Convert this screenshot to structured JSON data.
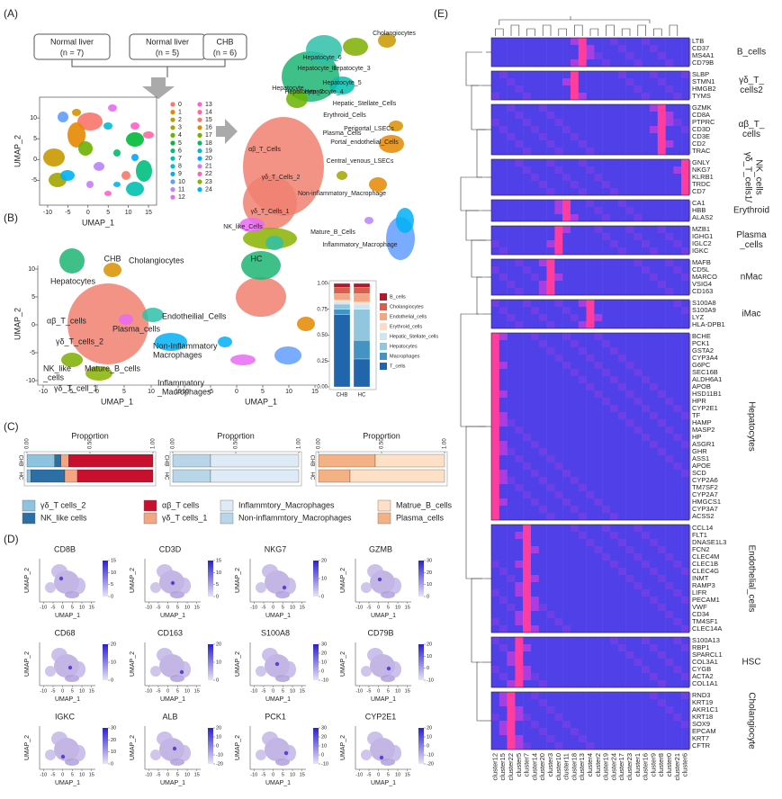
{
  "panel_labels": [
    "(A)",
    "(B)",
    "(C)",
    "(D)",
    "(E)"
  ],
  "panel_a": {
    "boxes": [
      {
        "title": "Normal liver",
        "n": "(n = 7)"
      },
      {
        "title": "Normal liver",
        "n": "(n = 5)"
      },
      {
        "title": "CHB",
        "n": "(n = 6)"
      }
    ],
    "xlabel": "UMAP_1",
    "ylabel": "UMAP_2",
    "xticks": [
      -10,
      -5,
      0,
      5,
      10,
      15
    ],
    "yticks": [
      10,
      5,
      0,
      -5
    ],
    "clusters": [
      "0",
      "1",
      "2",
      "3",
      "4",
      "5",
      "6",
      "7",
      "8",
      "9",
      "10",
      "11",
      "12",
      "13",
      "14",
      "15",
      "16",
      "17",
      "18",
      "19",
      "20",
      "21",
      "22",
      "23",
      "24"
    ],
    "cell_labels": [
      "Cholangiocytes",
      "Hepatocyte_6",
      "Hepatocyte_1",
      "Hepatocyte_3",
      "Hepatocyte",
      "Hepatocyte_5",
      "Hepatocyte_4",
      "Hepatocyte_2",
      "Hepatic_Stellate_Cells",
      "Erythroid_Cells",
      "Periportal_LSECs",
      "Plasma_Cells",
      "Portal_endothelial_Cells",
      "αβ_T_Cells",
      "Central_venous_LSECs",
      "γδ_T_Cells_2",
      "γδ_T_Cells_1",
      "NK_like_Cells",
      "Non-inflammatory_Macrophage",
      "Mature_B_Cells",
      "Inflammatory_Macrophage"
    ]
  },
  "panel_b": {
    "groups": [
      "CHB",
      "HC"
    ],
    "xlabel": "UMAP_1",
    "ylabel": "UMAP_2",
    "xticks_left": [
      -10,
      -5,
      0,
      5,
      10,
      15
    ],
    "xticks_right": [
      -10,
      -5,
      0,
      5,
      10,
      15
    ],
    "yticks": [
      10,
      5,
      0,
      -5,
      -10
    ],
    "cell_labels": [
      [
        "Cholangiocytes"
      ],
      [
        "Hepatocytes"
      ],
      [
        "αβ_T_cells"
      ],
      [
        "γδ_T_cells_2"
      ],
      [
        "Plasma_cells"
      ],
      [
        "Endotheilial_Cells"
      ],
      [
        "Non-Inflammatory",
        "Macrophages"
      ],
      [
        "NK_like",
        "_cells"
      ],
      [
        "Mature_B_cells"
      ],
      [
        "γδ_T_cell_1"
      ],
      [
        "Inflammatory",
        "_Macrophages"
      ]
    ],
    "bar": {
      "type": "bar",
      "categories": [
        "CHB",
        "HC"
      ],
      "ylim": [
        0,
        1
      ],
      "yticks": [
        {
          "value": 0,
          "label": "0.00"
        },
        {
          "value": 0.25,
          "label": "0.25"
        },
        {
          "value": 0.5,
          "label": "0.50"
        },
        {
          "value": 0.75,
          "label": "0.75"
        },
        {
          "value": 1,
          "label": "1.00"
        }
      ],
      "series": [
        {
          "name": "T_cells",
          "color": "#2166ac",
          "values": [
            0.7,
            0.27
          ]
        },
        {
          "name": "Macrophages",
          "color": "#4393c3",
          "values": [
            0.05,
            0.18
          ]
        },
        {
          "name": "Hepatocytes",
          "color": "#92c5de",
          "values": [
            0.05,
            0.3
          ]
        },
        {
          "name": "Hepatic_Stellate_cells",
          "color": "#d1e5f0",
          "values": [
            0.02,
            0.05
          ]
        },
        {
          "name": "Erythroid_cells",
          "color": "#fddbc7",
          "values": [
            0.02,
            0.02
          ]
        },
        {
          "name": "Endothelial_cells",
          "color": "#f4a582",
          "values": [
            0.06,
            0.08
          ]
        },
        {
          "name": "Cholangiocytes",
          "color": "#d6604d",
          "values": [
            0.06,
            0.06
          ]
        },
        {
          "name": "B_cells",
          "color": "#b2182b",
          "values": [
            0.04,
            0.04
          ]
        }
      ]
    }
  },
  "panel_c": {
    "charts": [
      {
        "type": "bar",
        "title": "Proportion",
        "categories": [
          "CHB",
          "HC"
        ],
        "xlim": [
          0,
          1
        ],
        "xticks": [
          {
            "value": 0,
            "label": "0.00"
          },
          {
            "value": 0.5,
            "label": "0.50"
          },
          {
            "value": 1,
            "label": "1.00"
          }
        ],
        "series": [
          {
            "name": "γδ_T cells_2",
            "color": "#8ec3e0",
            "values": [
              0.22,
              0.03
            ]
          },
          {
            "name": "NK_like cells",
            "color": "#2b6fa6",
            "values": [
              0.05,
              0.27
            ]
          },
          {
            "name": "γδ_T cells_1",
            "color": "#f4a582",
            "values": [
              0.06,
              0.1
            ]
          },
          {
            "name": "αβ_T cells",
            "color": "#c8102e",
            "values": [
              0.67,
              0.6
            ]
          }
        ]
      },
      {
        "type": "bar",
        "title": "Proportion",
        "categories": [
          "CHB",
          "HC"
        ],
        "xlim": [
          0,
          1
        ],
        "xticks": [
          {
            "value": 0,
            "label": "0.00"
          },
          {
            "value": 0.5,
            "label": "0.50"
          },
          {
            "value": 1,
            "label": "1.00"
          }
        ],
        "series": [
          {
            "name": "Non-inflammtory_Macrophages",
            "color": "#b9d6e9",
            "values": [
              0.3,
              0.3
            ]
          },
          {
            "name": "Inflammtory_Macrophages",
            "color": "#deebf7",
            "values": [
              0.7,
              0.7
            ]
          }
        ]
      },
      {
        "type": "bar",
        "title": "Proportion",
        "categories": [
          "CHB",
          "HC"
        ],
        "xlim": [
          0,
          1
        ],
        "xticks": [
          {
            "value": 0,
            "label": "0.00"
          },
          {
            "value": 0.5,
            "label": "0.50"
          },
          {
            "value": 1,
            "label": "1.00"
          }
        ],
        "series": [
          {
            "name": "Plasma_cells",
            "color": "#f4b183",
            "values": [
              0.45,
              0.25
            ]
          },
          {
            "name": "Matrue_B_cells",
            "color": "#fde0c5",
            "values": [
              0.55,
              0.75
            ]
          }
        ]
      }
    ]
  },
  "panel_d": {
    "xlabel": "UMAP_1",
    "ylabel": "UMAP_2",
    "xticks": [
      -10,
      -5,
      0,
      5,
      10,
      15
    ],
    "plots": [
      {
        "gene": "CD8B",
        "scale": [
          15,
          10,
          5,
          0
        ]
      },
      {
        "gene": "CD3D",
        "scale": [
          15,
          10,
          5,
          0
        ]
      },
      {
        "gene": "NKG7",
        "scale": [
          20,
          10,
          0
        ]
      },
      {
        "gene": "GZMB",
        "scale": [
          30,
          20,
          10,
          0
        ]
      },
      {
        "gene": "CD68",
        "scale": [
          20,
          10,
          0
        ]
      },
      {
        "gene": "CD163",
        "scale": [
          20,
          10,
          0
        ]
      },
      {
        "gene": "S100A8",
        "scale": [
          30,
          20,
          10,
          0,
          -10
        ]
      },
      {
        "gene": "CD79B",
        "scale": [
          20,
          10,
          0,
          -10
        ]
      },
      {
        "gene": "IGKC",
        "scale": [
          30,
          20,
          10,
          0
        ]
      },
      {
        "gene": "ALB",
        "scale": [
          20,
          10,
          0,
          -10,
          -20
        ]
      },
      {
        "gene": "PCK1",
        "scale": [
          30,
          20,
          10,
          0,
          -10
        ]
      },
      {
        "gene": "CYP2E1",
        "scale": [
          20,
          10,
          0,
          -10,
          -20
        ]
      }
    ]
  },
  "panel_e": {
    "clusters": [
      "cluster12",
      "cluster15",
      "cluster22",
      "cluster5",
      "cluster7",
      "cluster14",
      "cluster20",
      "cluster3",
      "cluster10",
      "cluster11",
      "cluster18",
      "cluster13",
      "cluster4",
      "cluster2",
      "cluster19",
      "cluster24",
      "cluster17",
      "cluster23",
      "cluster1",
      "cluster16",
      "cluster9",
      "cluster8",
      "cluster0",
      "cluster21",
      "cluster6"
    ],
    "blocks": [
      {
        "label": [
          "B_cells"
        ],
        "peak_cluster": "cluster13",
        "genes": [
          "LTB",
          "CD37",
          "MS4A1",
          "CD79B"
        ]
      },
      {
        "label": [
          "γδ_T_",
          "cells2"
        ],
        "peak_cluster": "cluster18",
        "genes": [
          "SLBP",
          "STMN1",
          "HMGB2",
          "TYMS"
        ]
      },
      {
        "label": [
          "αβ_T_",
          "cells"
        ],
        "peak_cluster": "cluster8",
        "genes": [
          "GZMK",
          "CD8A",
          "PTPRC",
          "CD3D",
          "CD3E",
          "CD2",
          "TRAC"
        ]
      },
      {
        "label": [
          "γδ_T_cells1/",
          "NK_cells"
        ],
        "peak_cluster": "cluster6",
        "genes": [
          "GNLY",
          "NKG7",
          "KLRB1",
          "TRDC",
          "CD7"
        ]
      },
      {
        "label": [
          "Erythroid"
        ],
        "peak_cluster": "cluster11",
        "genes": [
          "CA1",
          "HBB",
          "ALAS2"
        ]
      },
      {
        "label": [
          "Plasma",
          "_cells"
        ],
        "peak_cluster": "cluster10",
        "genes": [
          "MZB1",
          "IGHG1",
          "IGLC2",
          "IGKC"
        ]
      },
      {
        "label": [
          "nMac"
        ],
        "peak_cluster": "cluster3",
        "genes": [
          "MAFB",
          "CD5L",
          "MARCO",
          "VSIG4",
          "CD163"
        ]
      },
      {
        "label": [
          "iMac"
        ],
        "peak_cluster": "cluster4",
        "genes": [
          "S100A8",
          "S100A9",
          "LYZ",
          "HLA-DPB1"
        ]
      },
      {
        "label": [
          "Hepatocytes"
        ],
        "peak_cluster": "cluster12",
        "genes": [
          "BCHE",
          "PCK1",
          "GSTA2",
          "CYP3A4",
          "G6PC",
          "SEC16B",
          "ALDH6A1",
          "APOB",
          "HSD11B1",
          "HPR",
          "CYP2E1",
          "TF",
          "HAMP",
          "MASP2",
          "HP",
          "ASGR1",
          "GHR",
          "ASS1",
          "APOE",
          "SCD",
          "CYP2A6",
          "TM7SF2",
          "CYP2A7",
          "HMGCS1",
          "CYP3A7",
          "ACSS2"
        ]
      },
      {
        "label": [
          "Endothelial_cells"
        ],
        "peak_cluster": "cluster7",
        "genes": [
          "CCL14",
          "FLT1",
          "DNASE1L3",
          "FCN2",
          "CLEC4M",
          "CLEC1B",
          "CLEC4G",
          "INMT",
          "RAMP3",
          "LIFR",
          "PECAM1",
          "VWF",
          "CD34",
          "TM4SF1",
          "CLEC14A"
        ]
      },
      {
        "label": [
          "HSC"
        ],
        "peak_cluster": "cluster5",
        "genes": [
          "S100A13",
          "RBP1",
          "SPARCL1",
          "COL3A1",
          "CYGB",
          "ACTA2",
          "COL1A1"
        ]
      },
      {
        "label": [
          "Cholangiocyte"
        ],
        "peak_cluster": "cluster22",
        "genes": [
          "RND3",
          "KRT19",
          "AKR1C1",
          "KRT18",
          "SOX9",
          "EPCAM",
          "KRT7",
          "CFTR"
        ]
      }
    ]
  }
}
